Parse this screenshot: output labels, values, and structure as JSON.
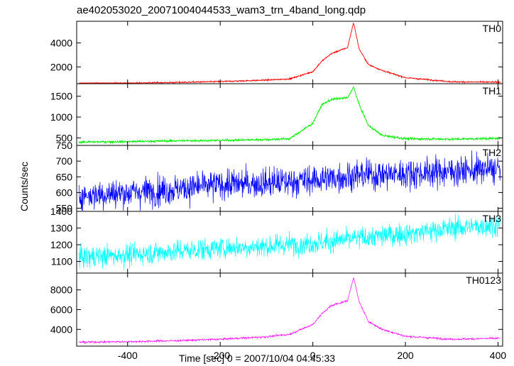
{
  "chart_data": {
    "type": "line",
    "title": "ae402053020_20071004044533_wam3_trn_4band_long.qdp",
    "xlabel": "Time [sec] 0 = 2007/10/04 04:45:33",
    "ylabel": "Counts/sec",
    "xlim": [
      -510,
      410
    ],
    "x_ticks": [
      -400,
      -200,
      0,
      200,
      400
    ],
    "grid": false,
    "panels": [
      {
        "name": "TH0",
        "color": "#ff0000",
        "ylim": [
          600,
          5800
        ],
        "y_ticks": [
          2000,
          4000
        ],
        "points": [
          [
            -505,
            620
          ],
          [
            -400,
            650
          ],
          [
            -300,
            700
          ],
          [
            -200,
            780
          ],
          [
            -100,
            900
          ],
          [
            -50,
            1000
          ],
          [
            0,
            1600
          ],
          [
            20,
            2500
          ],
          [
            40,
            3100
          ],
          [
            60,
            3400
          ],
          [
            75,
            3600
          ],
          [
            88,
            5700
          ],
          [
            100,
            3500
          ],
          [
            120,
            2200
          ],
          [
            150,
            1700
          ],
          [
            200,
            1100
          ],
          [
            300,
            760
          ],
          [
            405,
            720
          ]
        ]
      },
      {
        "name": "TH1",
        "color": "#00ee00",
        "ylim": [
          320,
          1800
        ],
        "y_ticks": [
          500,
          1000,
          1500
        ],
        "points": [
          [
            -505,
            400
          ],
          [
            -400,
            410
          ],
          [
            -300,
            430
          ],
          [
            -200,
            440
          ],
          [
            -100,
            460
          ],
          [
            -50,
            480
          ],
          [
            0,
            850
          ],
          [
            20,
            1300
          ],
          [
            40,
            1420
          ],
          [
            60,
            1450
          ],
          [
            75,
            1460
          ],
          [
            88,
            1720
          ],
          [
            100,
            1300
          ],
          [
            120,
            800
          ],
          [
            150,
            560
          ],
          [
            200,
            480
          ],
          [
            300,
            470
          ],
          [
            405,
            490
          ]
        ]
      },
      {
        "name": "TH2",
        "color": "#0000ff",
        "ylim": [
          540,
          750
        ],
        "y_ticks": [
          550,
          600,
          650,
          700,
          750
        ],
        "points": [
          [
            -505,
            590
          ],
          [
            -400,
            600
          ],
          [
            -300,
            610
          ],
          [
            -200,
            625
          ],
          [
            -100,
            630
          ],
          [
            0,
            640
          ],
          [
            100,
            655
          ],
          [
            200,
            660
          ],
          [
            300,
            668
          ],
          [
            405,
            675
          ]
        ]
      },
      {
        "name": "TH3",
        "color": "#00ffff",
        "ylim": [
          1030,
          1400
        ],
        "y_ticks": [
          1100,
          1200,
          1300,
          1400
        ],
        "points": [
          [
            -505,
            1125
          ],
          [
            -400,
            1140
          ],
          [
            -300,
            1160
          ],
          [
            -200,
            1180
          ],
          [
            -100,
            1190
          ],
          [
            0,
            1210
          ],
          [
            100,
            1240
          ],
          [
            200,
            1265
          ],
          [
            300,
            1300
          ],
          [
            405,
            1320
          ]
        ]
      },
      {
        "name": "TH0123",
        "color": "#ff00ff",
        "ylim": [
          2300,
          9700
        ],
        "y_ticks": [
          4000,
          6000,
          8000
        ],
        "points": [
          [
            -505,
            2700
          ],
          [
            -400,
            2750
          ],
          [
            -300,
            2850
          ],
          [
            -200,
            3000
          ],
          [
            -100,
            3250
          ],
          [
            -50,
            3500
          ],
          [
            0,
            4500
          ],
          [
            20,
            5600
          ],
          [
            40,
            6400
          ],
          [
            60,
            6700
          ],
          [
            75,
            6900
          ],
          [
            88,
            9300
          ],
          [
            100,
            6800
          ],
          [
            120,
            4800
          ],
          [
            150,
            4000
          ],
          [
            200,
            3300
          ],
          [
            300,
            3000
          ],
          [
            405,
            3100
          ]
        ]
      }
    ]
  }
}
